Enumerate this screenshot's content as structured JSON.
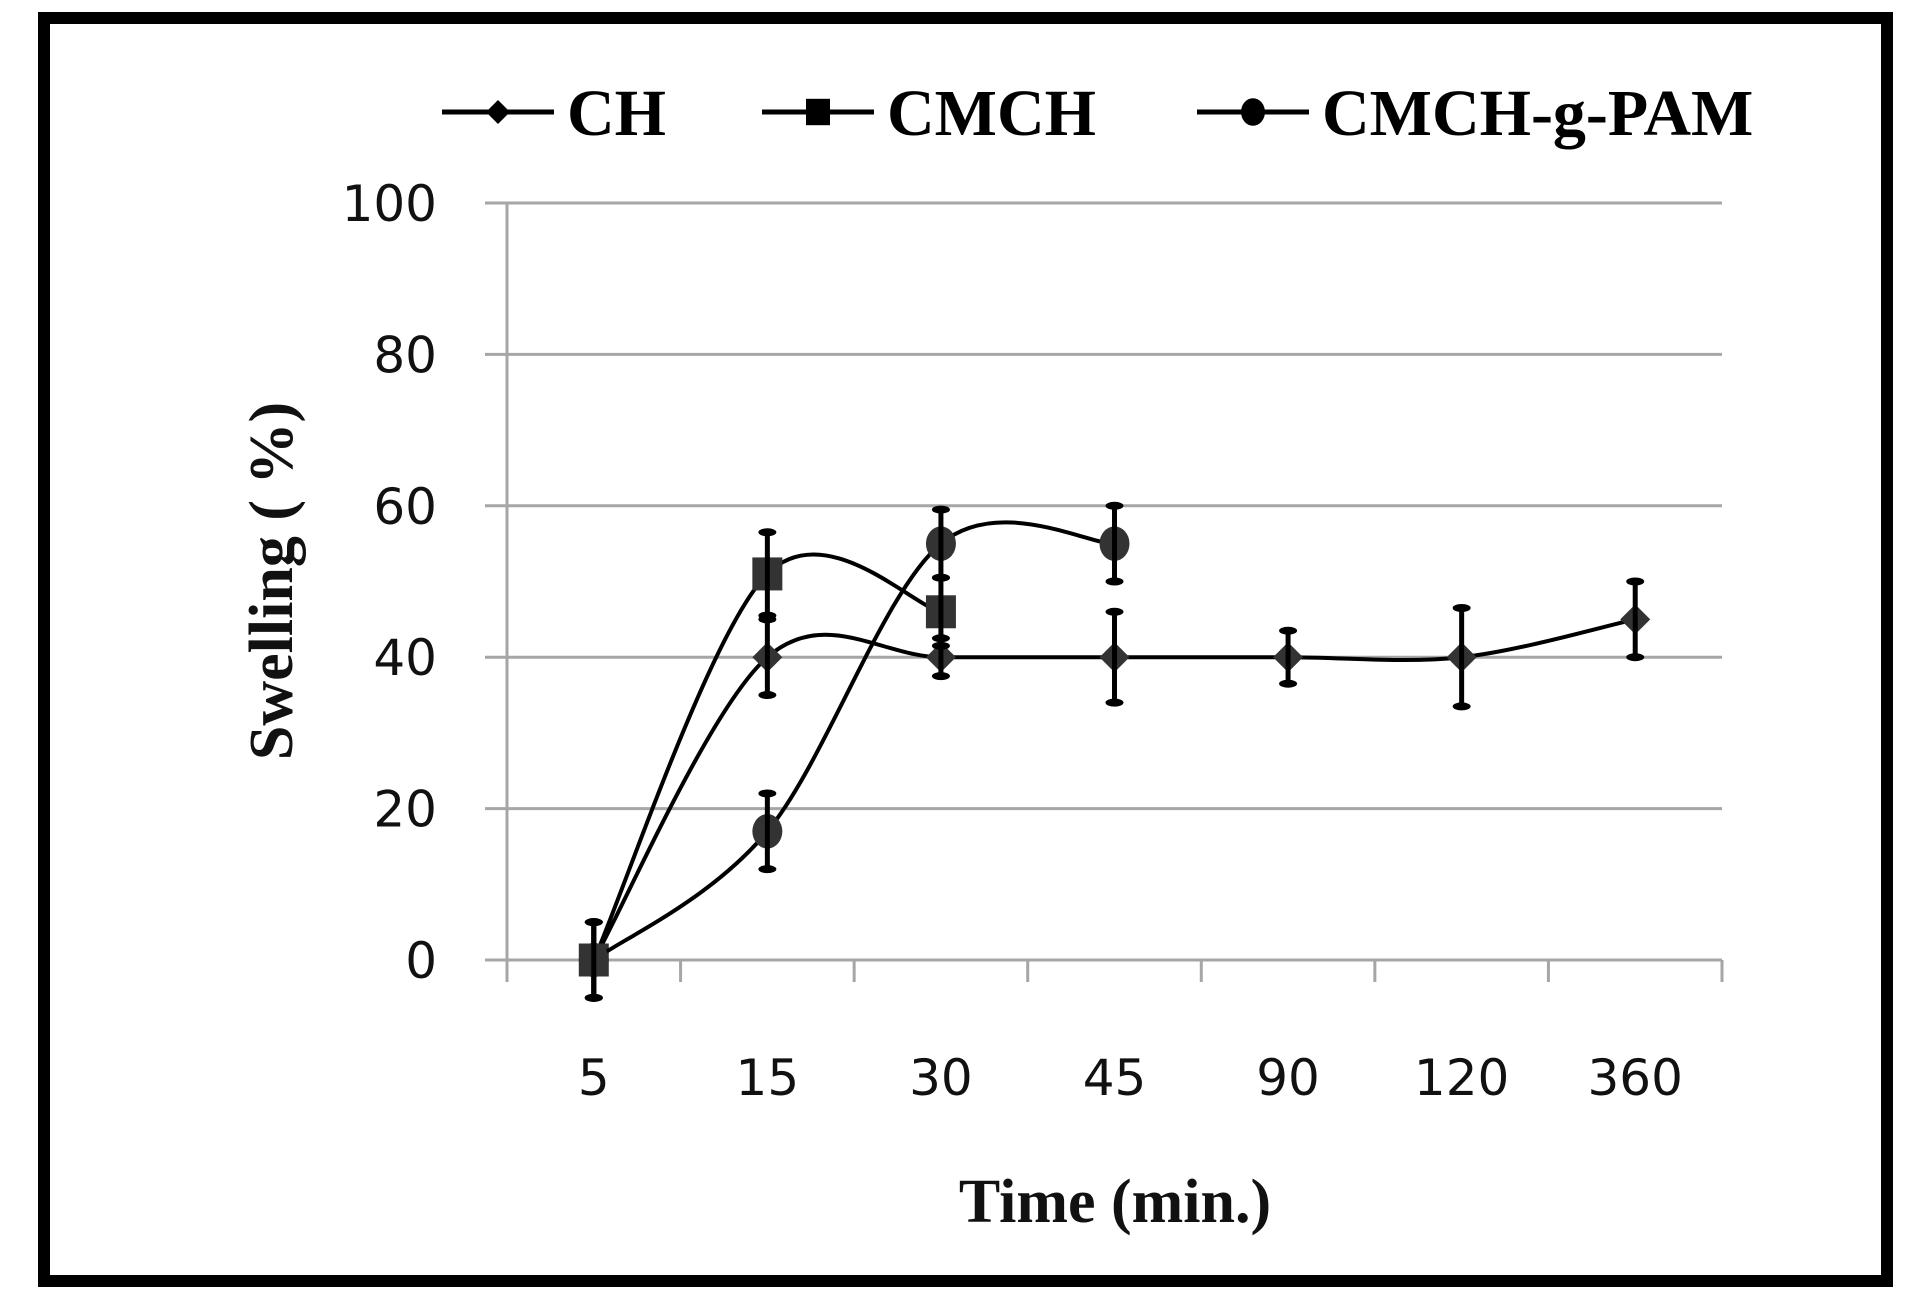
{
  "chart_data": {
    "type": "line",
    "title": "",
    "xlabel": "Time (min.)",
    "ylabel": "Swelling ( %)",
    "ylim": [
      0,
      100
    ],
    "yticks": [
      "0",
      "20",
      "40",
      "60",
      "80",
      "100"
    ],
    "ytick_values": [
      0,
      20,
      40,
      60,
      80,
      100
    ],
    "categories": [
      "5",
      "15",
      "30",
      "45",
      "90",
      "120",
      "360"
    ],
    "grid": "horizontal",
    "legend_position": "top",
    "series": [
      {
        "name": "CH",
        "marker": "diamond",
        "values": [
          0,
          40,
          40,
          40,
          40,
          40,
          45
        ],
        "errors": [
          5,
          5,
          2.5,
          6,
          3.5,
          6.5,
          5
        ]
      },
      {
        "name": "CMCH",
        "marker": "square",
        "values": [
          0,
          51,
          46,
          null,
          null,
          null,
          null
        ],
        "errors": [
          5,
          5.5,
          4.5,
          null,
          null,
          null,
          null
        ]
      },
      {
        "name": "CMCH-g-PAM",
        "marker": "circle",
        "values": [
          0,
          17,
          55,
          55,
          null,
          null,
          null
        ],
        "errors": [
          5,
          5,
          4.5,
          5,
          null,
          null,
          null
        ]
      }
    ],
    "colors": {
      "line": "#000000",
      "marker": "#333333",
      "grid": "#a6a6a6",
      "frame": "#000000"
    }
  }
}
